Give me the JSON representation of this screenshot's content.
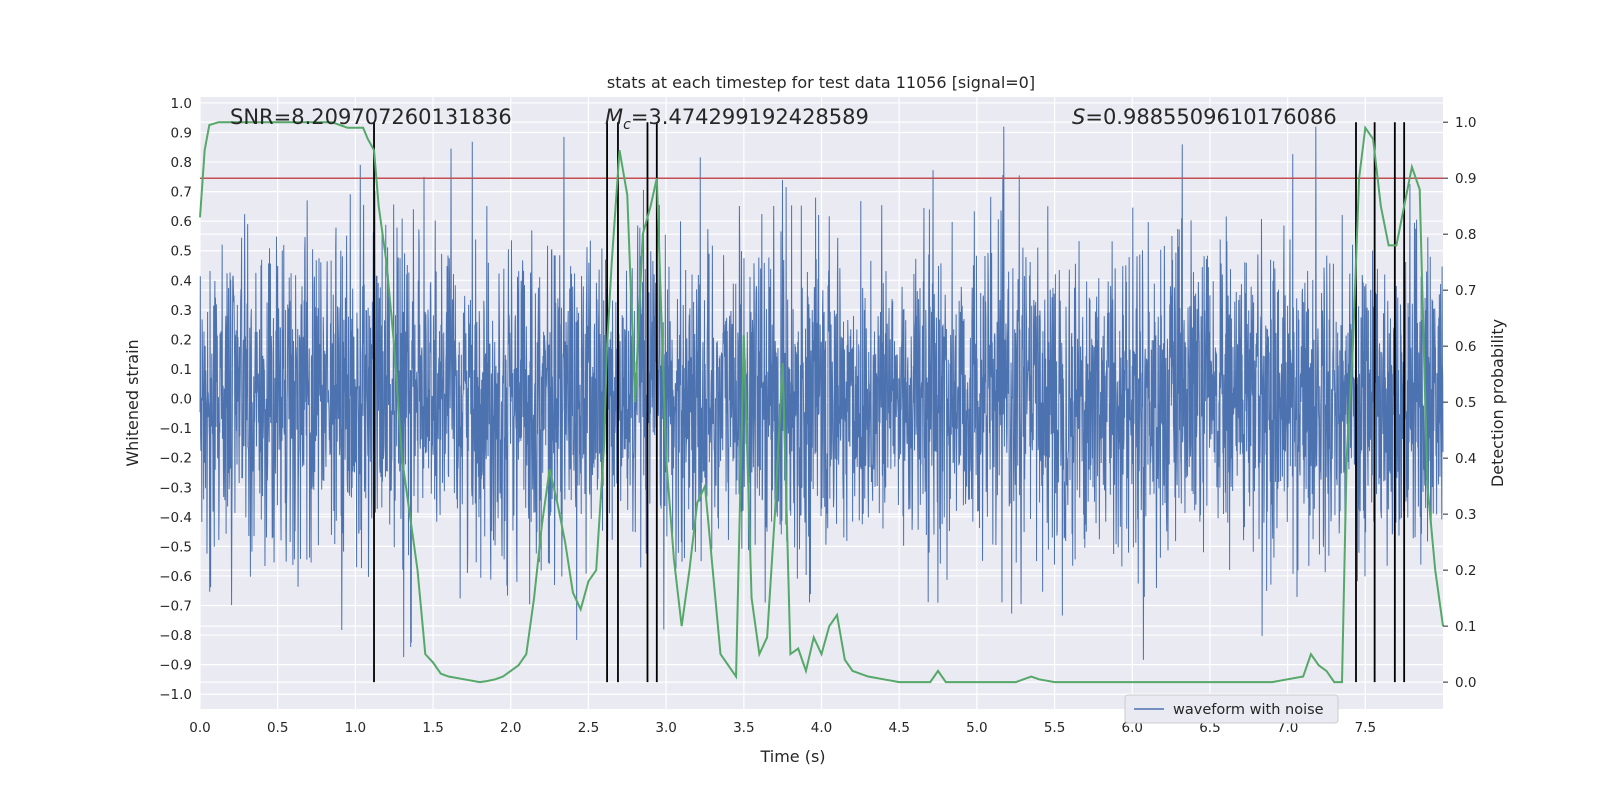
{
  "chart_data": {
    "type": "line",
    "title": "stats at each timestep for test data 11056 [signal=0]",
    "xlabel": "Time (s)",
    "ylabel_left": "Whitened strain",
    "ylabel_right": "Detection probability",
    "xlim": [
      0.0,
      8.0
    ],
    "ylim_left": [
      -1.05,
      1.02
    ],
    "ylim_right": [
      -0.048,
      1.045
    ],
    "x_ticks": [
      "0.0",
      "0.5",
      "1.0",
      "1.5",
      "2.0",
      "2.5",
      "3.0",
      "3.5",
      "4.0",
      "4.5",
      "5.0",
      "5.5",
      "6.0",
      "6.5",
      "7.0",
      "7.5"
    ],
    "y_ticks_left": [
      "1.0",
      "0.9",
      "0.8",
      "0.7",
      "0.6",
      "0.5",
      "0.4",
      "0.3",
      "0.2",
      "0.1",
      "0.0",
      "−0.1",
      "−0.2",
      "−0.3",
      "−0.4",
      "−0.5",
      "−0.6",
      "−0.7",
      "−0.8",
      "−0.9",
      "−1.0"
    ],
    "y_ticks_right": [
      "1.0",
      "0.9",
      "0.8",
      "0.7",
      "0.6",
      "0.5",
      "0.4",
      "0.3",
      "0.2",
      "0.1",
      "0.0"
    ],
    "annotations": {
      "snr": "SNR=8.209707260131836",
      "mc": "=3.474299192428589",
      "mc_symbol": "M",
      "mc_subscript": "c",
      "s": "=0.9885509610176086",
      "s_symbol": "S"
    },
    "legend": {
      "label": "waveform with noise",
      "location": "lower-right"
    },
    "threshold": {
      "value": 0.9,
      "axis": "right"
    },
    "event_lines": [
      1.12,
      2.62,
      2.69,
      2.88,
      2.94,
      7.44,
      7.56,
      7.69,
      7.75
    ],
    "detection_probability": {
      "x": [
        0.0,
        0.03,
        0.06,
        0.12,
        0.18,
        0.25,
        0.35,
        0.45,
        0.55,
        0.65,
        0.75,
        0.85,
        0.9,
        0.95,
        1.0,
        1.05,
        1.08,
        1.12,
        1.15,
        1.2,
        1.25,
        1.3,
        1.35,
        1.4,
        1.45,
        1.5,
        1.55,
        1.6,
        1.7,
        1.8,
        1.85,
        1.9,
        1.95,
        2.0,
        2.05,
        2.1,
        2.15,
        2.2,
        2.25,
        2.3,
        2.35,
        2.4,
        2.45,
        2.5,
        2.55,
        2.6,
        2.62,
        2.65,
        2.7,
        2.75,
        2.8,
        2.85,
        2.9,
        2.94,
        3.0,
        3.05,
        3.1,
        3.15,
        3.2,
        3.25,
        3.3,
        3.35,
        3.4,
        3.45,
        3.5,
        3.55,
        3.6,
        3.65,
        3.7,
        3.75,
        3.8,
        3.85,
        3.9,
        3.95,
        4.0,
        4.05,
        4.1,
        4.15,
        4.2,
        4.3,
        4.4,
        4.5,
        4.6,
        4.7,
        4.75,
        4.8,
        4.85,
        4.9,
        5.0,
        5.1,
        5.2,
        5.25,
        5.3,
        5.35,
        5.4,
        5.5,
        5.6,
        5.7,
        5.8,
        5.9,
        6.0,
        6.2,
        6.3,
        6.5,
        6.7,
        6.9,
        7.0,
        7.1,
        7.15,
        7.2,
        7.25,
        7.3,
        7.35,
        7.38,
        7.42,
        7.46,
        7.5,
        7.55,
        7.6,
        7.65,
        7.7,
        7.75,
        7.8,
        7.85,
        7.9,
        7.95,
        8.0
      ],
      "y": [
        0.83,
        0.95,
        0.995,
        1.0,
        1.0,
        1.0,
        1.0,
        1.0,
        1.0,
        1.0,
        1.0,
        1.0,
        0.995,
        0.99,
        0.99,
        0.99,
        0.97,
        0.95,
        0.85,
        0.75,
        0.6,
        0.4,
        0.3,
        0.2,
        0.05,
        0.035,
        0.015,
        0.01,
        0.005,
        0.0,
        0.002,
        0.005,
        0.01,
        0.02,
        0.03,
        0.05,
        0.15,
        0.28,
        0.38,
        0.32,
        0.25,
        0.16,
        0.13,
        0.18,
        0.2,
        0.42,
        0.6,
        0.75,
        0.95,
        0.87,
        0.5,
        0.8,
        0.85,
        0.9,
        0.4,
        0.22,
        0.1,
        0.2,
        0.32,
        0.35,
        0.2,
        0.05,
        0.03,
        0.01,
        0.62,
        0.15,
        0.05,
        0.08,
        0.3,
        0.57,
        0.05,
        0.06,
        0.02,
        0.08,
        0.05,
        0.1,
        0.12,
        0.04,
        0.02,
        0.01,
        0.005,
        0.0,
        0.0,
        0.0,
        0.02,
        0.0,
        0.0,
        0.0,
        0.0,
        0.0,
        0.0,
        0.0,
        0.005,
        0.01,
        0.005,
        0.0,
        0.0,
        0.0,
        0.0,
        0.0,
        0.0,
        0.0,
        0.0,
        0.0,
        0.0,
        0.0,
        0.005,
        0.01,
        0.05,
        0.03,
        0.02,
        0.0,
        0.0,
        0.4,
        0.6,
        0.9,
        0.99,
        0.97,
        0.85,
        0.78,
        0.78,
        0.85,
        0.92,
        0.88,
        0.35,
        0.2,
        0.1
      ]
    },
    "waveform_with_noise": {
      "points": 4096,
      "amplitude_range": [
        -0.95,
        0.92
      ],
      "note": "dense noise trace"
    }
  }
}
